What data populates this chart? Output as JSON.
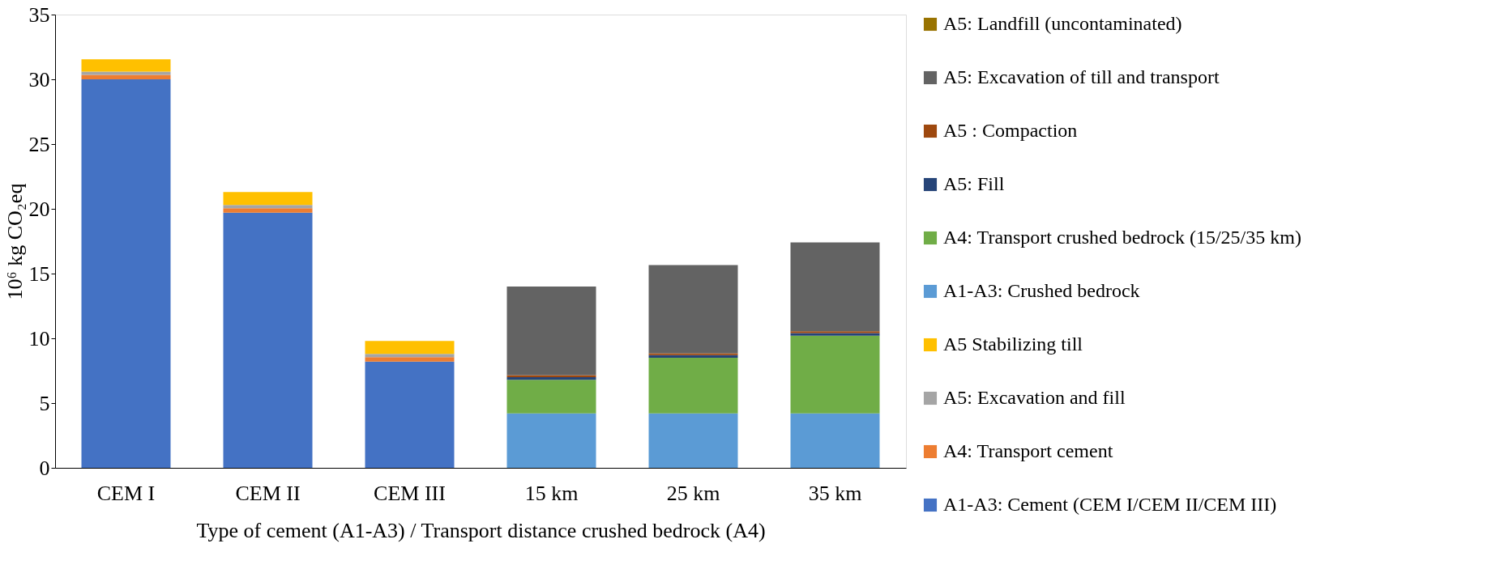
{
  "chart_data": {
    "type": "bar",
    "stacked": true,
    "xlabel": "Type of cement (A1-A3) / Transport distance crushed bedrock (A4)",
    "ylabel": "10⁶ kg CO₂eq",
    "categories": [
      "CEM I",
      "CEM II",
      "CEM III",
      "15 km",
      "25 km",
      "35 km"
    ],
    "series": [
      {
        "name": "A1-A3: Cement (CEM I/CEM II/CEM III)",
        "color": "#4472c4",
        "values": [
          30.0,
          19.7,
          8.2,
          null,
          null,
          null
        ]
      },
      {
        "name": "A4: Transport cement",
        "color": "#ed7d31",
        "values": [
          0.35,
          0.35,
          0.35,
          null,
          null,
          null
        ]
      },
      {
        "name": "A5: Excavation and fill",
        "color": "#a5a5a5",
        "values": [
          0.25,
          0.25,
          0.25,
          null,
          null,
          null
        ]
      },
      {
        "name": "A5 Stabilizing till",
        "color": "#ffc000",
        "values": [
          0.95,
          1.0,
          1.0,
          null,
          null,
          null
        ]
      },
      {
        "name": "A1-A3: Crushed bedrock",
        "color": "#5b9bd5",
        "values": [
          null,
          null,
          null,
          4.2,
          4.2,
          4.2
        ]
      },
      {
        "name": "A4: Transport crushed bedrock (15/25/35 km)",
        "color": "#70ad47",
        "values": [
          null,
          null,
          null,
          2.6,
          4.3,
          6.0
        ]
      },
      {
        "name": "A5: Fill",
        "color": "#264478",
        "values": [
          null,
          null,
          null,
          0.2,
          0.2,
          0.2
        ]
      },
      {
        "name": "A5 : Compaction",
        "color": "#9e480e",
        "values": [
          null,
          null,
          null,
          0.15,
          0.15,
          0.15
        ]
      },
      {
        "name": "A5: Excavation of till and transport",
        "color": "#636363",
        "values": [
          null,
          null,
          null,
          6.85,
          6.8,
          6.85
        ]
      },
      {
        "name": "A5: Landfill (uncontaminated)",
        "color": "#997300",
        "values": [
          null,
          null,
          null,
          0,
          0,
          0
        ]
      }
    ],
    "ylim": [
      0,
      35
    ],
    "yticks": [
      0,
      5,
      10,
      15,
      20,
      25,
      30,
      35
    ],
    "grid": false,
    "legend": "right"
  }
}
